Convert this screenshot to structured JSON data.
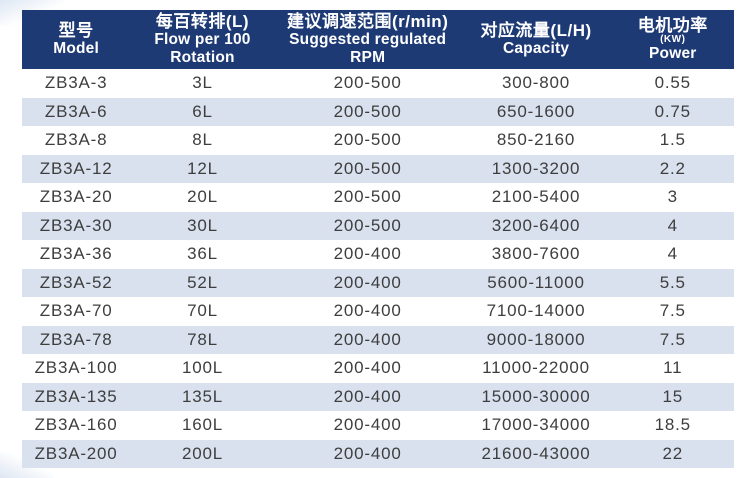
{
  "colors": {
    "header_bg": "#1e3a75",
    "header_text": "#ffffff",
    "row_stripe": "#d9e0ee",
    "row_text": "#3e3e3e",
    "page_bg": "#ffffff",
    "corner_accent": "#dde7f3"
  },
  "table": {
    "columns": [
      {
        "lines": [
          "型号",
          "Model"
        ]
      },
      {
        "lines": [
          "每百转排(L)",
          "Flow per 100",
          "Rotation"
        ]
      },
      {
        "lines": [
          "建议调速范围(r/min)",
          "Suggested regulated",
          "RPM"
        ]
      },
      {
        "lines": [
          "对应流量(L/H)",
          "Capacity"
        ]
      },
      {
        "lines": [
          "电机功率",
          "(KW)",
          "Power"
        ]
      }
    ],
    "rows": [
      [
        "ZB3A-3",
        "3L",
        "200-500",
        "300-800",
        "0.55"
      ],
      [
        "ZB3A-6",
        "6L",
        "200-500",
        "650-1600",
        "0.75"
      ],
      [
        "ZB3A-8",
        "8L",
        "200-500",
        "850-2160",
        "1.5"
      ],
      [
        "ZB3A-12",
        "12L",
        "200-500",
        "1300-3200",
        "2.2"
      ],
      [
        "ZB3A-20",
        "20L",
        "200-500",
        "2100-5400",
        "3"
      ],
      [
        "ZB3A-30",
        "30L",
        "200-500",
        "3200-6400",
        "4"
      ],
      [
        "ZB3A-36",
        "36L",
        "200-400",
        "3800-7600",
        "4"
      ],
      [
        "ZB3A-52",
        "52L",
        "200-400",
        "5600-11000",
        "5.5"
      ],
      [
        "ZB3A-70",
        "70L",
        "200-400",
        "7100-14000",
        "7.5"
      ],
      [
        "ZB3A-78",
        "78L",
        "200-400",
        "9000-18000",
        "7.5"
      ],
      [
        "ZB3A-100",
        "100L",
        "200-400",
        "11000-22000",
        "11"
      ],
      [
        "ZB3A-135",
        "135L",
        "200-400",
        "15000-30000",
        "15"
      ],
      [
        "ZB3A-160",
        "160L",
        "200-400",
        "17000-34000",
        "18.5"
      ],
      [
        "ZB3A-200",
        "200L",
        "200-400",
        "21600-43000",
        "22"
      ]
    ]
  }
}
